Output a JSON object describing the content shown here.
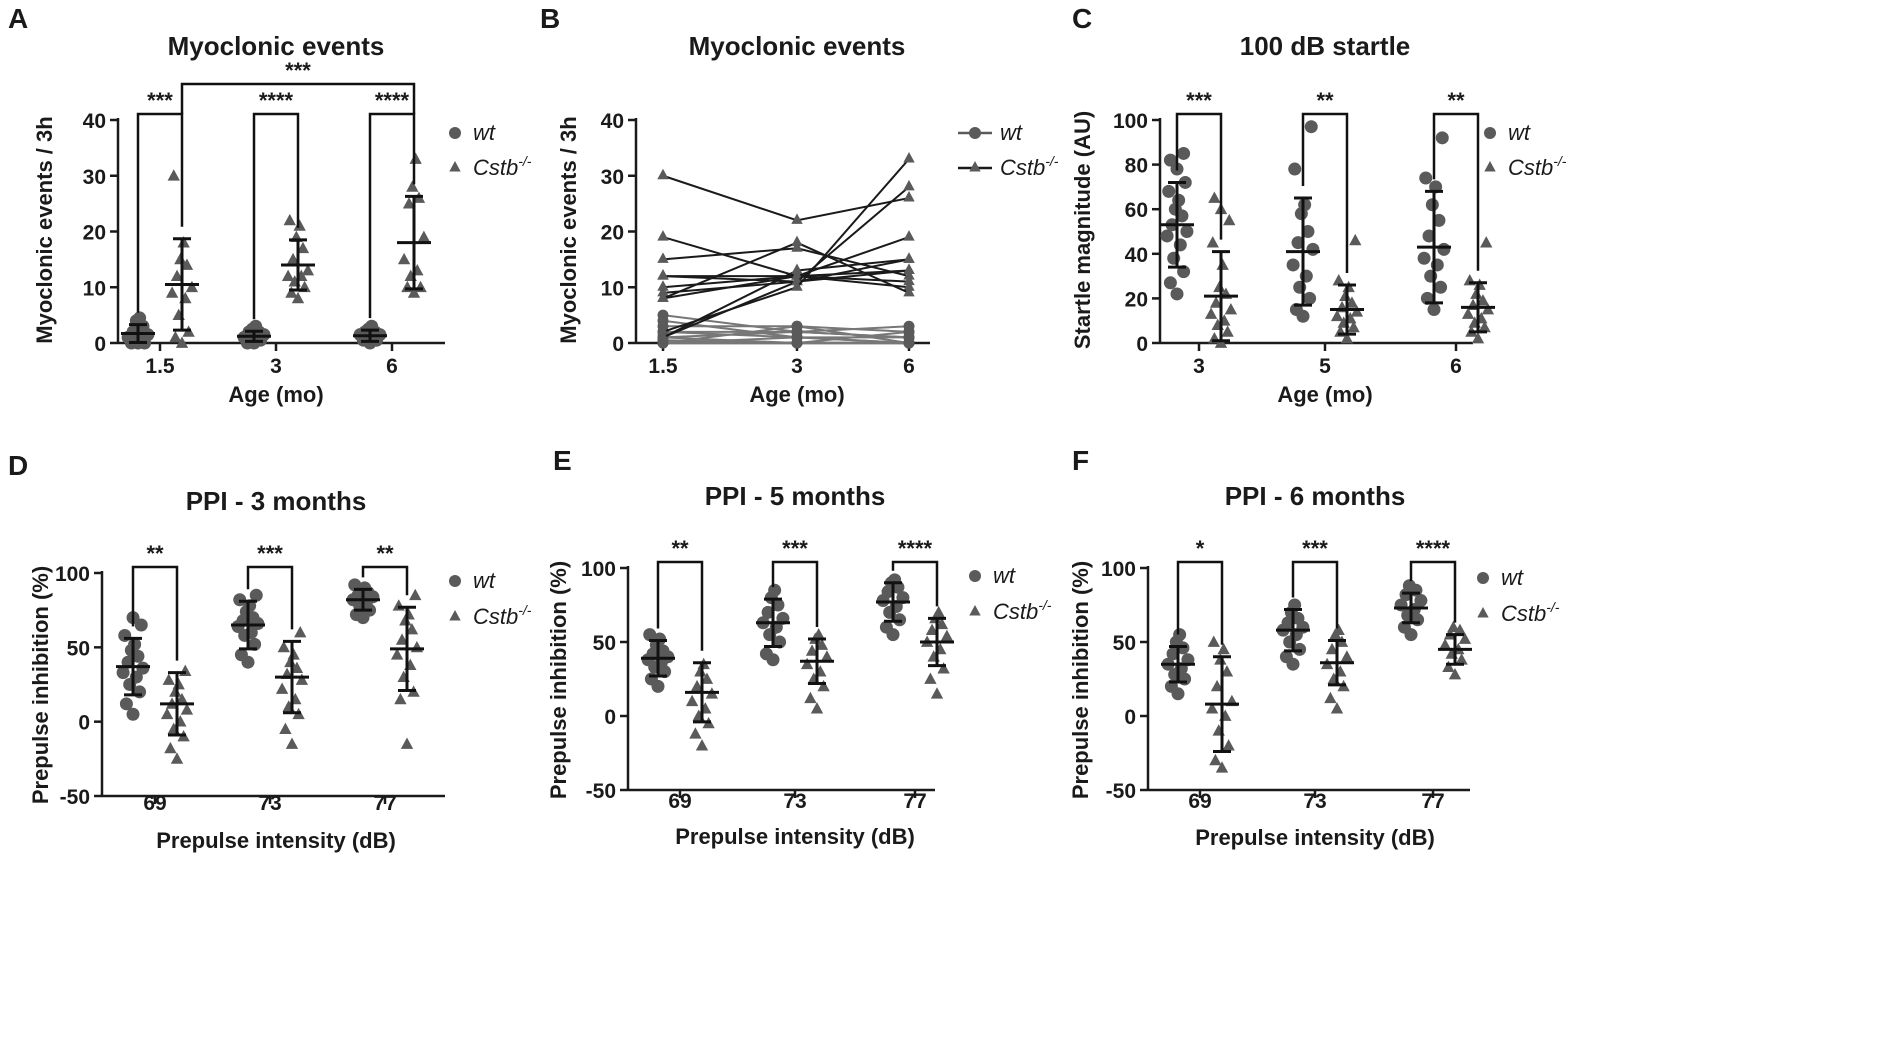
{
  "figure": {
    "colors": {
      "wt": "#5a5a5a",
      "cstb": "#5a5a5a",
      "axis": "#1a1a1a"
    }
  },
  "chart_data": [
    {
      "id": "A",
      "panel_label": "A",
      "type": "scatter",
      "style": "dot",
      "title": "Myoclonic events",
      "xlabel": "Age (mo)",
      "ylabel": "Myoclonic events / 3h",
      "ylim": [
        0,
        40
      ],
      "yticks": [
        0,
        10,
        20,
        30,
        40
      ],
      "yticklabels": [
        "0",
        "10",
        "20",
        "30",
        "40"
      ],
      "categories": [
        "1.5",
        "3",
        "6"
      ],
      "legend": {
        "wt": "wt",
        "mut_base": "Cstb",
        "mut_sup": "-/-",
        "position": "right"
      },
      "groups": [
        {
          "wt": {
            "mean": 1.7,
            "sd": 1.6,
            "values": [
              0,
              0,
              0,
              0.5,
              1,
              1,
              1.5,
              2,
              3,
              4,
              4.5
            ]
          },
          "mut": {
            "mean": 10.5,
            "sd": 8.2,
            "values": [
              0,
              1,
              2,
              5,
              8,
              9,
              10,
              12,
              14,
              15,
              18,
              30
            ]
          }
        },
        {
          "wt": {
            "mean": 1.2,
            "sd": 0.9,
            "values": [
              0,
              0,
              0.5,
              0.5,
              1,
              1,
              1.5,
              2,
              2,
              2.5,
              3
            ]
          },
          "mut": {
            "mean": 14,
            "sd": 4.5,
            "values": [
              8,
              9,
              10,
              11,
              12,
              12,
              13,
              15,
              17,
              19,
              21,
              22
            ]
          }
        },
        {
          "wt": {
            "mean": 1.3,
            "sd": 1.0,
            "values": [
              0,
              0.5,
              0.5,
              1,
              1,
              1.5,
              1.5,
              2,
              2,
              2.5,
              3
            ]
          },
          "mut": {
            "mean": 18,
            "sd": 8.3,
            "values": [
              9,
              10,
              10,
              12,
              13,
              15,
              19,
              25,
              26,
              28,
              33
            ]
          }
        }
      ],
      "sig": [
        {
          "group": 0,
          "stars": "***"
        },
        {
          "group": 1,
          "stars": "****"
        },
        {
          "group": 2,
          "stars": "****"
        },
        {
          "span": [
            0,
            2
          ],
          "stars": "***"
        }
      ]
    },
    {
      "id": "B",
      "panel_label": "B",
      "type": "line",
      "title": "Myoclonic events",
      "xlabel": "Age (mo)",
      "ylabel": "Myoclonic events / 3h",
      "ylim": [
        0,
        40
      ],
      "yticks": [
        0,
        10,
        20,
        30,
        40
      ],
      "yticklabels": [
        "0",
        "10",
        "20",
        "30",
        "40"
      ],
      "categories": [
        "1.5",
        "3",
        "6"
      ],
      "legend": {
        "wt": "wt",
        "mut_base": "Cstb",
        "mut_sup": "-/-",
        "position": "top-right"
      },
      "wt_series": [
        [
          0,
          0,
          0
        ],
        [
          0,
          1,
          0
        ],
        [
          1,
          2,
          1
        ],
        [
          2,
          2,
          3
        ],
        [
          3,
          3,
          2
        ],
        [
          4,
          1,
          0
        ],
        [
          5,
          2,
          1
        ],
        [
          0.5,
          0,
          2
        ],
        [
          1,
          0,
          0
        ],
        [
          2,
          1,
          1
        ],
        [
          0,
          3,
          0
        ]
      ],
      "mut_series": [
        [
          30,
          22,
          26
        ],
        [
          19,
          12,
          10
        ],
        [
          15,
          17,
          12
        ],
        [
          12,
          12,
          11
        ],
        [
          12,
          11,
          13
        ],
        [
          10,
          12,
          19
        ],
        [
          9,
          11,
          15
        ],
        [
          8,
          18,
          9
        ],
        [
          8,
          12,
          13
        ],
        [
          1,
          11,
          28
        ],
        [
          2,
          10,
          33
        ],
        [
          1,
          13,
          15
        ]
      ]
    },
    {
      "id": "C",
      "panel_label": "C",
      "type": "scatter",
      "style": "dot",
      "title": "100 dB startle",
      "xlabel": "Age (mo)",
      "ylabel": "Startle magnitude (AU)",
      "ylim": [
        0,
        100
      ],
      "yticks": [
        0,
        20,
        40,
        60,
        80,
        100
      ],
      "yticklabels": [
        "0",
        "20",
        "40",
        "60",
        "80",
        "100"
      ],
      "categories": [
        "3",
        "5",
        "6"
      ],
      "legend": {
        "wt": "wt",
        "mut_base": "Cstb",
        "mut_sup": "-/-",
        "position": "right"
      },
      "groups": [
        {
          "wt": {
            "mean": 53,
            "sd": 19,
            "values": [
              22,
              27,
              32,
              38,
              44,
              48,
              50,
              53,
              57,
              60,
              64,
              68,
              72,
              78,
              82,
              85
            ]
          },
          "mut": {
            "mean": 21,
            "sd": 20,
            "values": [
              0,
              2,
              5,
              8,
              10,
              13,
              15,
              18,
              22,
              25,
              35,
              45,
              55,
              60,
              65
            ]
          }
        },
        {
          "wt": {
            "mean": 41,
            "sd": 24,
            "values": [
              12,
              15,
              20,
              25,
              30,
              35,
              42,
              45,
              50,
              58,
              62,
              78,
              97
            ]
          },
          "mut": {
            "mean": 15,
            "sd": 11,
            "values": [
              2,
              5,
              7,
              9,
              11,
              12,
              14,
              16,
              18,
              21,
              25,
              28,
              46
            ]
          }
        },
        {
          "wt": {
            "mean": 43,
            "sd": 25,
            "values": [
              15,
              20,
              25,
              30,
              35,
              38,
              42,
              48,
              55,
              62,
              70,
              74,
              92
            ]
          },
          "mut": {
            "mean": 16,
            "sd": 11,
            "values": [
              2,
              5,
              7,
              9,
              11,
              13,
              15,
              17,
              19,
              22,
              26,
              28,
              45
            ]
          }
        }
      ],
      "sig": [
        {
          "group": 0,
          "stars": "***"
        },
        {
          "group": 1,
          "stars": "**"
        },
        {
          "group": 2,
          "stars": "**"
        }
      ]
    },
    {
      "id": "D",
      "panel_label": "D",
      "type": "scatter",
      "style": "dot",
      "title": "PPI - 3 months",
      "xlabel": "Prepulse intensity (dB)",
      "ylabel": "Prepulse inhibition (%)",
      "ylim": [
        -50,
        100
      ],
      "yticks": [
        -50,
        0,
        50,
        100
      ],
      "yticklabels": [
        "-50",
        "0",
        "50",
        "100"
      ],
      "categories": [
        "69",
        "73",
        "77"
      ],
      "legend": {
        "wt": "wt",
        "mut_base": "Cstb",
        "mut_sup": "-/-",
        "position": "right"
      },
      "groups": [
        {
          "wt": {
            "mean": 37,
            "sd": 19,
            "values": [
              5,
              12,
              20,
              25,
              30,
              33,
              36,
              40,
              44,
              48,
              52,
              58,
              65,
              70
            ]
          },
          "mut": {
            "mean": 12,
            "sd": 21,
            "values": [
              -25,
              -18,
              -10,
              -5,
              0,
              5,
              8,
              12,
              15,
              20,
              25,
              28,
              34
            ]
          }
        },
        {
          "wt": {
            "mean": 65,
            "sd": 16,
            "values": [
              40,
              45,
              52,
              58,
              60,
              64,
              66,
              68,
              70,
              74,
              78,
              82,
              85
            ]
          },
          "mut": {
            "mean": 30,
            "sd": 24,
            "values": [
              -15,
              -5,
              5,
              10,
              15,
              22,
              28,
              32,
              36,
              40,
              45,
              50,
              60
            ]
          }
        },
        {
          "wt": {
            "mean": 82,
            "sd": 7,
            "values": [
              70,
              72,
              75,
              78,
              80,
              82,
              84,
              85,
              87,
              88,
              90,
              92
            ]
          },
          "mut": {
            "mean": 49,
            "sd": 28,
            "values": [
              -15,
              15,
              20,
              30,
              38,
              45,
              50,
              55,
              62,
              68,
              72,
              78,
              85
            ]
          }
        }
      ],
      "sig": [
        {
          "group": 0,
          "stars": "**"
        },
        {
          "group": 1,
          "stars": "***"
        },
        {
          "group": 2,
          "stars": "**"
        }
      ]
    },
    {
      "id": "E",
      "panel_label": "E",
      "type": "scatter",
      "style": "dot",
      "title": "PPI - 5 months",
      "xlabel": "Prepulse intensity (dB)",
      "ylabel": "Prepulse inhibition (%)",
      "ylim": [
        -50,
        100
      ],
      "yticks": [
        -50,
        0,
        50,
        100
      ],
      "yticklabels": [
        "-50",
        "0",
        "50",
        "100"
      ],
      "categories": [
        "69",
        "73",
        "77"
      ],
      "legend": {
        "wt": "wt",
        "mut_base": "Cstb",
        "mut_sup": "-/-",
        "position": "right"
      },
      "groups": [
        {
          "wt": {
            "mean": 39,
            "sd": 12,
            "values": [
              20,
              25,
              30,
              33,
              36,
              38,
              40,
              42,
              44,
              48,
              52,
              55
            ]
          },
          "mut": {
            "mean": 16,
            "sd": 20,
            "values": [
              -20,
              -12,
              -5,
              0,
              5,
              10,
              15,
              20,
              25,
              30,
              35
            ]
          }
        },
        {
          "wt": {
            "mean": 63,
            "sd": 16,
            "values": [
              38,
              42,
              50,
              55,
              60,
              63,
              66,
              70,
              75,
              80,
              85
            ]
          },
          "mut": {
            "mean": 37,
            "sd": 15,
            "values": [
              5,
              12,
              20,
              25,
              30,
              35,
              40,
              44,
              48,
              52,
              55
            ]
          }
        },
        {
          "wt": {
            "mean": 77,
            "sd": 13,
            "values": [
              55,
              60,
              65,
              70,
              74,
              78,
              80,
              84,
              87,
              90,
              92
            ]
          },
          "mut": {
            "mean": 50,
            "sd": 16,
            "values": [
              15,
              25,
              32,
              40,
              45,
              50,
              54,
              58,
              62,
              66,
              70
            ]
          }
        }
      ],
      "sig": [
        {
          "group": 0,
          "stars": "**"
        },
        {
          "group": 1,
          "stars": "***"
        },
        {
          "group": 2,
          "stars": "****"
        }
      ]
    },
    {
      "id": "F",
      "panel_label": "F",
      "type": "scatter",
      "style": "dot",
      "title": "PPI - 6 months",
      "xlabel": "Prepulse intensity (dB)",
      "ylabel": "Prepulse inhibition (%)",
      "ylim": [
        -50,
        100
      ],
      "yticks": [
        -50,
        0,
        50,
        100
      ],
      "yticklabels": [
        "-50",
        "0",
        "50",
        "100"
      ],
      "categories": [
        "69",
        "73",
        "77"
      ],
      "legend": {
        "wt": "wt",
        "mut_base": "Cstb",
        "mut_sup": "-/-",
        "position": "right"
      },
      "groups": [
        {
          "wt": {
            "mean": 35,
            "sd": 12,
            "values": [
              15,
              20,
              25,
              28,
              32,
              35,
              38,
              42,
              46,
              50,
              55
            ]
          },
          "mut": {
            "mean": 8,
            "sd": 32,
            "values": [
              -35,
              -30,
              -20,
              -10,
              0,
              5,
              10,
              20,
              30,
              38,
              45,
              50
            ]
          }
        },
        {
          "wt": {
            "mean": 58,
            "sd": 14,
            "values": [
              35,
              40,
              45,
              50,
              55,
              58,
              60,
              63,
              66,
              70,
              75
            ]
          },
          "mut": {
            "mean": 36,
            "sd": 15,
            "values": [
              5,
              12,
              20,
              25,
              30,
              35,
              40,
              45,
              50,
              55,
              58
            ]
          }
        },
        {
          "wt": {
            "mean": 73,
            "sd": 10,
            "values": [
              55,
              60,
              65,
              68,
              72,
              75,
              78,
              82,
              85,
              88
            ]
          },
          "mut": {
            "mean": 45,
            "sd": 10,
            "values": [
              28,
              33,
              38,
              42,
              45,
              48,
              52,
              55,
              58,
              60
            ]
          }
        }
      ],
      "sig": [
        {
          "group": 0,
          "stars": "*"
        },
        {
          "group": 1,
          "stars": "***"
        },
        {
          "group": 2,
          "stars": "****"
        }
      ]
    }
  ]
}
